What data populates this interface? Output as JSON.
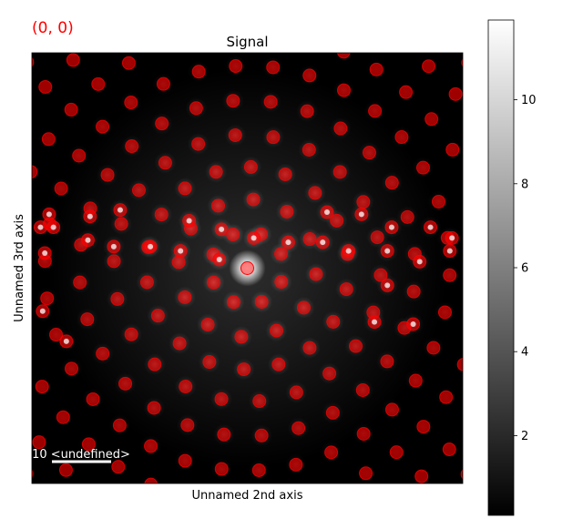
{
  "coordinate_readout": "(0, 0)",
  "colors": {
    "readout": "#ff0000",
    "marker": "#ff0000",
    "background": "#000000",
    "scalebar": "#ffffff"
  },
  "scalebar": {
    "label": "10 <undefined>"
  },
  "chart_data": {
    "type": "heatmap",
    "title": "Signal",
    "xlabel": "Unnamed 2nd axis",
    "ylabel": "Unnamed 3rd axis",
    "xlim": [
      0,
      100
    ],
    "ylim": [
      0,
      100
    ],
    "colorbar": {
      "colormap": "gray",
      "ticks": [
        2,
        4,
        6,
        8,
        10
      ],
      "range": [
        0.1,
        11.9
      ]
    },
    "marker_rings": [
      {
        "name": "ring-1",
        "radius": 8.5,
        "count": 8,
        "phase": 22
      },
      {
        "name": "ring-2",
        "radius": 16.0,
        "count": 12,
        "phase": 5
      },
      {
        "name": "ring-3",
        "radius": 23.5,
        "count": 18,
        "phase": 12
      },
      {
        "name": "ring-4",
        "radius": 31.0,
        "count": 22,
        "phase": 3
      },
      {
        "name": "ring-5",
        "radius": 39.0,
        "count": 28,
        "phase": 8
      },
      {
        "name": "ring-6",
        "radius": 47.0,
        "count": 34,
        "phase": 2
      },
      {
        "name": "ring-7",
        "radius": 55.0,
        "count": 40,
        "phase": 6
      },
      {
        "name": "ring-8",
        "radius": 63.0,
        "count": 44,
        "phase": 1
      },
      {
        "name": "ring-9",
        "radius": 70.0,
        "count": 46,
        "phase": 4
      }
    ],
    "inner_row_markers": [
      {
        "x": 3.0,
        "y": 46.5
      },
      {
        "x": 5.0,
        "y": 40.5
      },
      {
        "x": 4.0,
        "y": 37.5
      },
      {
        "x": 2.0,
        "y": 40.5
      },
      {
        "x": 13.0,
        "y": 43.5
      },
      {
        "x": 19.0,
        "y": 45.0
      },
      {
        "x": 20.5,
        "y": 36.5
      },
      {
        "x": 27.5,
        "y": 45.0
      },
      {
        "x": 34.5,
        "y": 46.0
      },
      {
        "x": 36.5,
        "y": 39.0
      },
      {
        "x": 43.5,
        "y": 48.0
      },
      {
        "x": 44.0,
        "y": 41.0
      },
      {
        "x": 51.5,
        "y": 43.0
      },
      {
        "x": 59.5,
        "y": 44.0
      },
      {
        "x": 67.5,
        "y": 44.0
      },
      {
        "x": 68.5,
        "y": 37.0
      },
      {
        "x": 73.5,
        "y": 46.0
      },
      {
        "x": 76.5,
        "y": 37.5
      },
      {
        "x": 82.5,
        "y": 46.0
      },
      {
        "x": 83.5,
        "y": 40.5
      },
      {
        "x": 90.0,
        "y": 48.5
      },
      {
        "x": 92.5,
        "y": 40.5
      },
      {
        "x": 97.0,
        "y": 46.0
      },
      {
        "x": 97.5,
        "y": 43.0
      },
      {
        "x": 2.5,
        "y": 60.0
      },
      {
        "x": 8.0,
        "y": 67.0
      },
      {
        "x": 13.5,
        "y": 38.0
      },
      {
        "x": 79.5,
        "y": 62.5
      },
      {
        "x": 82.5,
        "y": 54.0
      },
      {
        "x": 88.5,
        "y": 63.0
      }
    ]
  }
}
